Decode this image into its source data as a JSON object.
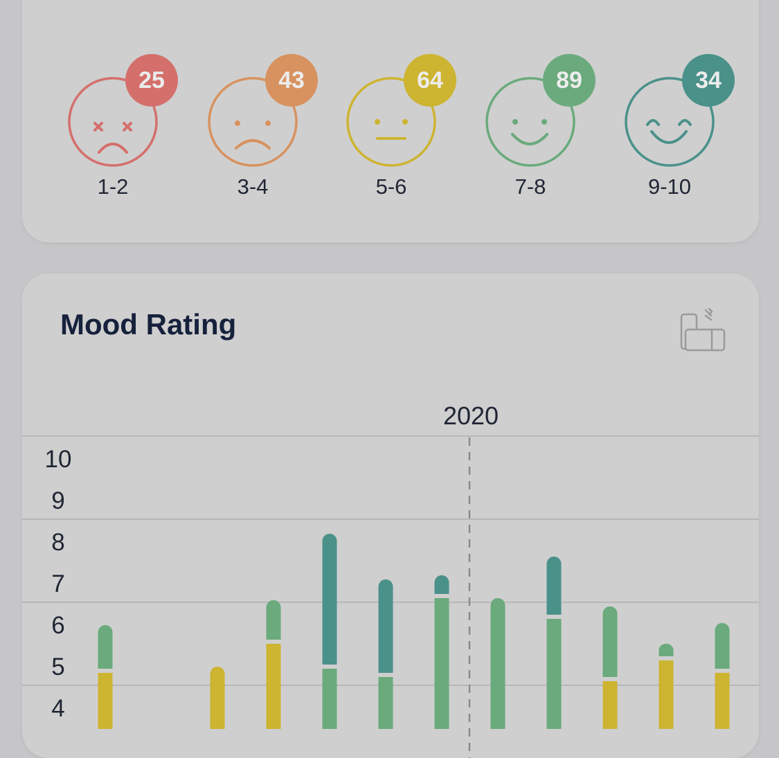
{
  "mood_summary": {
    "items": [
      {
        "label": "1-2",
        "count": "25",
        "face": "dead-face-icon",
        "color": "#d46f6c"
      },
      {
        "label": "3-4",
        "count": "43",
        "face": "sad-face-icon",
        "color": "#d8925f"
      },
      {
        "label": "5-6",
        "count": "64",
        "face": "neutral-face-icon",
        "color": "#cdb431"
      },
      {
        "label": "7-8",
        "count": "89",
        "face": "smile-face-icon",
        "color": "#6aaa7c"
      },
      {
        "label": "9-10",
        "count": "34",
        "face": "happy-face-icon",
        "color": "#4a9189"
      }
    ]
  },
  "mood_rating": {
    "title": "Mood Rating",
    "rotate_icon": "rotate-device-icon"
  },
  "chart_data": {
    "type": "bar",
    "title": "Mood Rating",
    "year_marker": "2020",
    "yticks": [
      "10",
      "9",
      "8",
      "7",
      "6",
      "5",
      "4"
    ],
    "colors": {
      "yellow": "#cdb431",
      "green": "#6aaa7c",
      "teal": "#4a9189"
    },
    "bars": [
      {
        "min": 3.5,
        "max": 6.0,
        "split": 4.9,
        "low": "yellow",
        "high": "green"
      },
      {
        "min": 3.5,
        "max": 5.0,
        "low": "yellow"
      },
      {
        "min": 3.5,
        "max": 6.6,
        "split": 5.6,
        "low": "yellow",
        "high": "green"
      },
      {
        "min": 3.5,
        "max": 8.2,
        "split": 5.0,
        "low": "green",
        "high": "teal"
      },
      {
        "min": 3.5,
        "max": 7.1,
        "split": 4.8,
        "low": "green",
        "high": "teal"
      },
      {
        "min": 3.5,
        "max": 7.2,
        "split": 6.7,
        "low": "green",
        "high": "teal"
      },
      {
        "min": 3.5,
        "max": 6.65,
        "low": "green"
      },
      {
        "min": 3.5,
        "max": 7.65,
        "split": 6.2,
        "low": "green",
        "high": "teal"
      },
      {
        "min": 3.5,
        "max": 6.45,
        "split": 4.7,
        "low": "yellow",
        "high": "green"
      },
      {
        "min": 3.5,
        "max": 5.55,
        "split": 5.2,
        "low": "yellow",
        "high": "green"
      },
      {
        "min": 3.5,
        "max": 6.05,
        "split": 4.9,
        "low": "yellow",
        "high": "green"
      }
    ]
  }
}
